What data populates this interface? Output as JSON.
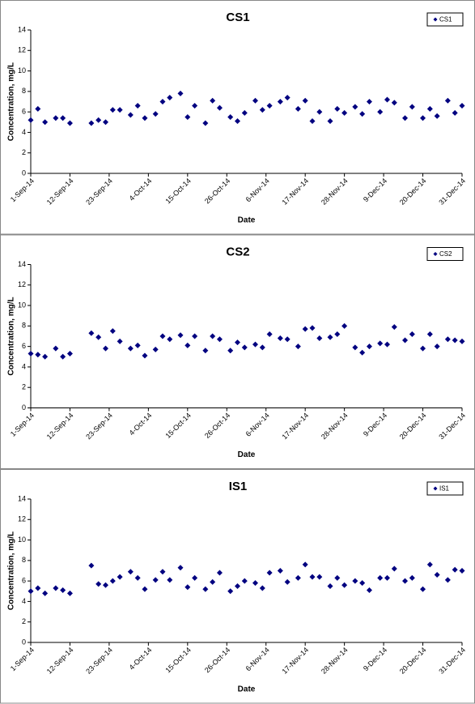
{
  "chart_data": [
    {
      "type": "scatter",
      "title": "CS1",
      "xlabel": "Date",
      "ylabel": "Concentration, mg/L",
      "legend": "upper right",
      "x": [
        "2014-09-01",
        "2014-09-03",
        "2014-09-05",
        "2014-09-08",
        "2014-09-10",
        "2014-09-12",
        "2014-09-18",
        "2014-09-20",
        "2014-09-22",
        "2014-09-24",
        "2014-09-26",
        "2014-09-29",
        "2014-10-01",
        "2014-10-03",
        "2014-10-06",
        "2014-10-08",
        "2014-10-10",
        "2014-10-13",
        "2014-10-15",
        "2014-10-17",
        "2014-10-20",
        "2014-10-22",
        "2014-10-24",
        "2014-10-27",
        "2014-10-29",
        "2014-10-31",
        "2014-11-03",
        "2014-11-05",
        "2014-11-07",
        "2014-11-10",
        "2014-11-12",
        "2014-11-15",
        "2014-11-17",
        "2014-11-19",
        "2014-11-21",
        "2014-11-24",
        "2014-11-26",
        "2014-11-28",
        "2014-12-01",
        "2014-12-03",
        "2014-12-05",
        "2014-12-08",
        "2014-12-10",
        "2014-12-12",
        "2014-12-15",
        "2014-12-17",
        "2014-12-20",
        "2014-12-22",
        "2014-12-24",
        "2014-12-27",
        "2014-12-29",
        "2014-12-31"
      ],
      "series": [
        {
          "name": "CS1",
          "color": "#000080",
          "values": [
            5.2,
            6.3,
            5.0,
            5.4,
            5.4,
            4.9,
            4.9,
            5.2,
            5.0,
            6.2,
            6.2,
            5.7,
            6.6,
            5.4,
            5.8,
            7.0,
            7.4,
            7.8,
            5.5,
            6.6,
            4.9,
            7.1,
            6.4,
            5.5,
            5.1,
            5.9,
            7.1,
            6.2,
            6.6,
            7.0,
            7.4,
            6.3,
            7.1,
            5.1,
            6.0,
            5.1,
            6.3,
            5.9,
            6.5,
            5.8,
            7.0,
            6.0,
            7.2,
            6.9,
            5.4,
            6.5,
            5.4,
            6.3,
            5.6,
            7.1,
            5.9,
            6.6
          ]
        }
      ],
      "xlim": [
        "2014-09-01",
        "2014-12-31"
      ],
      "xticks": [
        {
          "value": "2014-09-01",
          "label": "1-Sep-14"
        },
        {
          "value": "2014-09-12",
          "label": "12-Sep-14"
        },
        {
          "value": "2014-09-23",
          "label": "23-Sep-14"
        },
        {
          "value": "2014-10-04",
          "label": "4-Oct-14"
        },
        {
          "value": "2014-10-15",
          "label": "15-Oct-14"
        },
        {
          "value": "2014-10-26",
          "label": "26-Oct-14"
        },
        {
          "value": "2014-11-06",
          "label": "6-Nov-14"
        },
        {
          "value": "2014-11-17",
          "label": "17-Nov-14"
        },
        {
          "value": "2014-11-28",
          "label": "28-Nov-14"
        },
        {
          "value": "2014-12-09",
          "label": "9-Dec-14"
        },
        {
          "value": "2014-12-20",
          "label": "20-Dec-14"
        },
        {
          "value": "2014-12-31",
          "label": "31-Dec-14"
        }
      ],
      "ylim": [
        0,
        14
      ],
      "yticks": [
        0,
        2,
        4,
        6,
        8,
        10,
        12,
        14
      ]
    },
    {
      "type": "scatter",
      "title": "CS2",
      "xlabel": "Date",
      "ylabel": "Concentration, mg/L",
      "legend": "upper right",
      "x": [
        "2014-09-01",
        "2014-09-03",
        "2014-09-05",
        "2014-09-08",
        "2014-09-10",
        "2014-09-12",
        "2014-09-18",
        "2014-09-20",
        "2014-09-22",
        "2014-09-24",
        "2014-09-26",
        "2014-09-29",
        "2014-10-01",
        "2014-10-03",
        "2014-10-06",
        "2014-10-08",
        "2014-10-10",
        "2014-10-13",
        "2014-10-15",
        "2014-10-17",
        "2014-10-20",
        "2014-10-22",
        "2014-10-24",
        "2014-10-27",
        "2014-10-29",
        "2014-10-31",
        "2014-11-03",
        "2014-11-05",
        "2014-11-07",
        "2014-11-10",
        "2014-11-12",
        "2014-11-15",
        "2014-11-17",
        "2014-11-19",
        "2014-11-21",
        "2014-11-24",
        "2014-11-26",
        "2014-11-28",
        "2014-12-01",
        "2014-12-03",
        "2014-12-05",
        "2014-12-08",
        "2014-12-10",
        "2014-12-12",
        "2014-12-15",
        "2014-12-17",
        "2014-12-20",
        "2014-12-22",
        "2014-12-24",
        "2014-12-27",
        "2014-12-29",
        "2014-12-31"
      ],
      "series": [
        {
          "name": "CS2",
          "color": "#000080",
          "values": [
            5.3,
            5.2,
            5.0,
            5.8,
            5.0,
            5.3,
            7.3,
            6.9,
            5.8,
            7.5,
            6.5,
            5.8,
            6.1,
            5.1,
            5.7,
            7.0,
            6.7,
            7.1,
            6.1,
            7.0,
            5.6,
            7.0,
            6.7,
            5.6,
            6.4,
            5.9,
            6.2,
            5.9,
            7.2,
            6.8,
            6.7,
            6.0,
            7.7,
            7.8,
            6.8,
            6.9,
            7.2,
            8.0,
            5.9,
            5.4,
            6.0,
            6.3,
            6.2,
            7.9,
            6.6,
            7.2,
            5.8,
            7.2,
            6.0,
            6.7,
            6.6,
            6.5
          ]
        }
      ],
      "xlim": [
        "2014-09-01",
        "2014-12-31"
      ],
      "xticks": [
        {
          "value": "2014-09-01",
          "label": "1-Sep-14"
        },
        {
          "value": "2014-09-12",
          "label": "12-Sep-14"
        },
        {
          "value": "2014-09-23",
          "label": "23-Sep-14"
        },
        {
          "value": "2014-10-04",
          "label": "4-Oct-14"
        },
        {
          "value": "2014-10-15",
          "label": "15-Oct-14"
        },
        {
          "value": "2014-10-26",
          "label": "26-Oct-14"
        },
        {
          "value": "2014-11-06",
          "label": "6-Nov-14"
        },
        {
          "value": "2014-11-17",
          "label": "17-Nov-14"
        },
        {
          "value": "2014-11-28",
          "label": "28-Nov-14"
        },
        {
          "value": "2014-12-09",
          "label": "9-Dec-14"
        },
        {
          "value": "2014-12-20",
          "label": "20-Dec-14"
        },
        {
          "value": "2014-12-31",
          "label": "31-Dec-14"
        }
      ],
      "ylim": [
        0,
        14
      ],
      "yticks": [
        0,
        2,
        4,
        6,
        8,
        10,
        12,
        14
      ]
    },
    {
      "type": "scatter",
      "title": "IS1",
      "xlabel": "Date",
      "ylabel": "Concentration, mg/L",
      "legend": "upper right",
      "x": [
        "2014-09-01",
        "2014-09-03",
        "2014-09-05",
        "2014-09-08",
        "2014-09-10",
        "2014-09-12",
        "2014-09-18",
        "2014-09-20",
        "2014-09-22",
        "2014-09-24",
        "2014-09-26",
        "2014-09-29",
        "2014-10-01",
        "2014-10-03",
        "2014-10-06",
        "2014-10-08",
        "2014-10-10",
        "2014-10-13",
        "2014-10-15",
        "2014-10-17",
        "2014-10-20",
        "2014-10-22",
        "2014-10-24",
        "2014-10-27",
        "2014-10-29",
        "2014-10-31",
        "2014-11-03",
        "2014-11-05",
        "2014-11-07",
        "2014-11-10",
        "2014-11-12",
        "2014-11-15",
        "2014-11-17",
        "2014-11-19",
        "2014-11-21",
        "2014-11-24",
        "2014-11-26",
        "2014-11-28",
        "2014-12-01",
        "2014-12-03",
        "2014-12-05",
        "2014-12-08",
        "2014-12-10",
        "2014-12-12",
        "2014-12-15",
        "2014-12-17",
        "2014-12-20",
        "2014-12-22",
        "2014-12-24",
        "2014-12-27",
        "2014-12-29",
        "2014-12-31"
      ],
      "series": [
        {
          "name": "IS1",
          "color": "#000080",
          "values": [
            5.0,
            5.3,
            4.8,
            5.3,
            5.1,
            4.8,
            7.5,
            5.7,
            5.6,
            6.0,
            6.4,
            6.9,
            6.3,
            5.2,
            6.1,
            6.9,
            6.1,
            7.3,
            5.4,
            6.3,
            5.2,
            5.9,
            6.8,
            5.0,
            5.5,
            6.0,
            5.8,
            5.3,
            6.8,
            7.0,
            5.9,
            6.3,
            7.6,
            6.4,
            6.4,
            5.5,
            6.3,
            5.6,
            6.0,
            5.8,
            5.1,
            6.3,
            6.3,
            7.2,
            6.0,
            6.3,
            5.2,
            7.6,
            6.6,
            6.1,
            7.1,
            7.0
          ]
        }
      ],
      "xlim": [
        "2014-09-01",
        "2014-12-31"
      ],
      "xticks": [
        {
          "value": "2014-09-01",
          "label": "1-Sep-14"
        },
        {
          "value": "2014-09-12",
          "label": "12-Sep-14"
        },
        {
          "value": "2014-09-23",
          "label": "23-Sep-14"
        },
        {
          "value": "2014-10-04",
          "label": "4-Oct-14"
        },
        {
          "value": "2014-10-15",
          "label": "15-Oct-14"
        },
        {
          "value": "2014-10-26",
          "label": "26-Oct-14"
        },
        {
          "value": "2014-11-06",
          "label": "6-Nov-14"
        },
        {
          "value": "2014-11-17",
          "label": "17-Nov-14"
        },
        {
          "value": "2014-11-28",
          "label": "28-Nov-14"
        },
        {
          "value": "2014-12-09",
          "label": "9-Dec-14"
        },
        {
          "value": "2014-12-20",
          "label": "20-Dec-14"
        },
        {
          "value": "2014-12-31",
          "label": "31-Dec-14"
        }
      ],
      "ylim": [
        0,
        14
      ],
      "yticks": [
        0,
        2,
        4,
        6,
        8,
        10,
        12,
        14
      ]
    }
  ]
}
